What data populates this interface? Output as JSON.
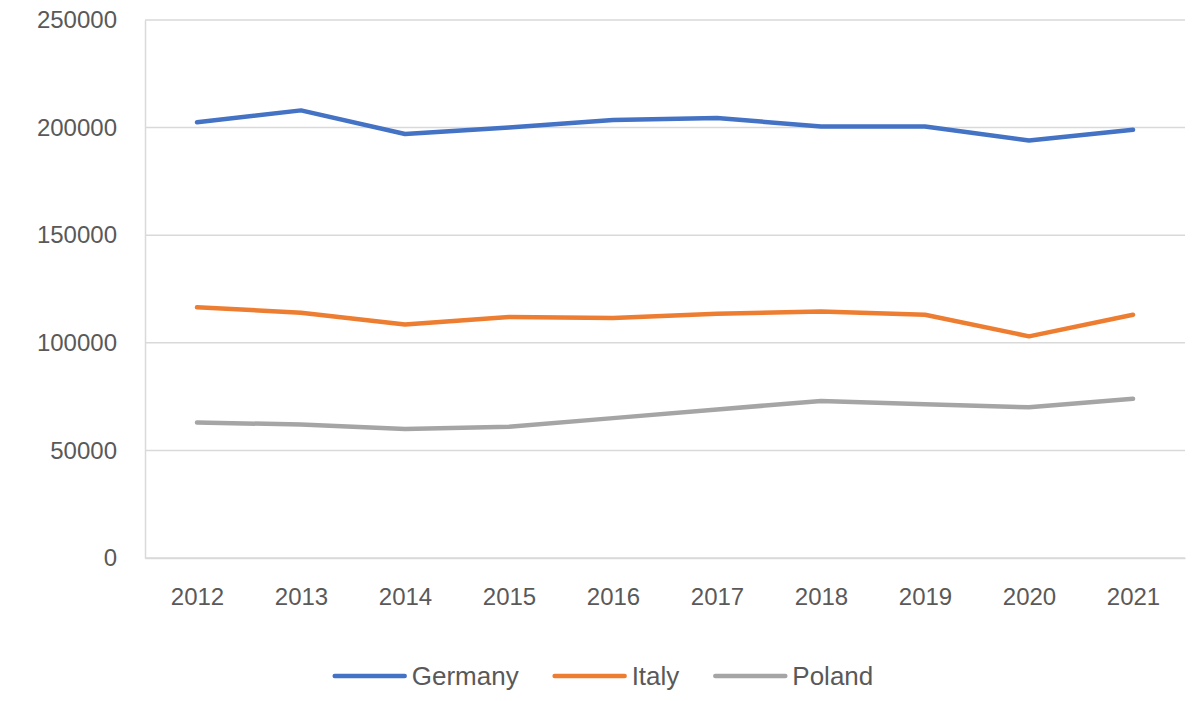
{
  "chart_data": {
    "type": "line",
    "categories": [
      "2012",
      "2013",
      "2014",
      "2015",
      "2016",
      "2017",
      "2018",
      "2019",
      "2020",
      "2021"
    ],
    "series": [
      {
        "name": "Germany",
        "color": "#4472c4",
        "values": [
          202500,
          208000,
          197000,
          200000,
          203500,
          204500,
          200500,
          200500,
          194000,
          199000
        ]
      },
      {
        "name": "Italy",
        "color": "#ed7d31",
        "values": [
          116500,
          114000,
          108500,
          112000,
          111500,
          113500,
          114500,
          113000,
          103000,
          113000
        ]
      },
      {
        "name": "Poland",
        "color": "#a5a5a5",
        "values": [
          63000,
          62000,
          60000,
          61000,
          65000,
          69000,
          73000,
          71500,
          70000,
          74000
        ]
      }
    ],
    "ylim": [
      0,
      250000
    ],
    "yticks": [
      0,
      50000,
      100000,
      150000,
      200000,
      250000
    ],
    "grid": true,
    "legend": "bottom"
  }
}
